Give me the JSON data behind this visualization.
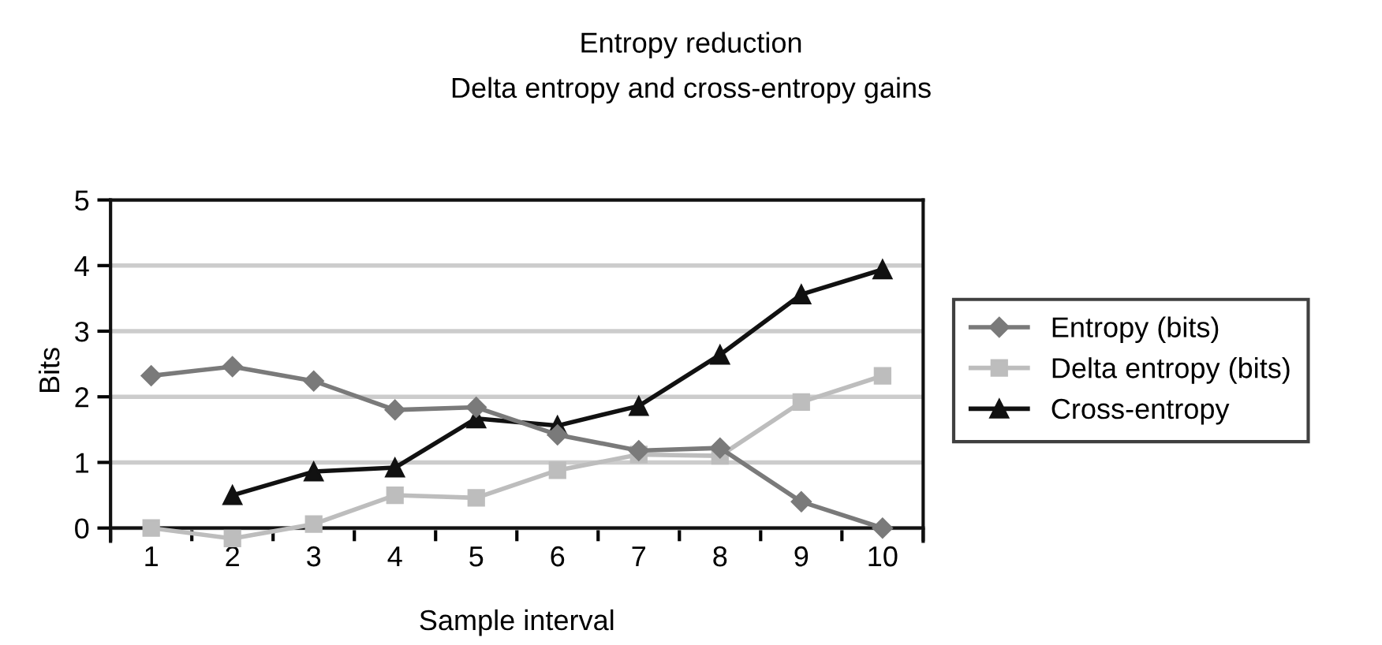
{
  "chart_data": {
    "type": "line",
    "title": "Entropy reduction",
    "subtitle": "Delta entropy and cross-entropy gains",
    "xlabel": "Sample interval",
    "ylabel": "Bits",
    "categories": [
      "1",
      "2",
      "3",
      "4",
      "5",
      "6",
      "7",
      "8",
      "9",
      "10"
    ],
    "series": [
      {
        "name": "Entropy (bits)",
        "color": "#7a7a7a",
        "marker": "diamond",
        "values": [
          2.32,
          2.46,
          2.24,
          1.8,
          1.84,
          1.42,
          1.18,
          1.22,
          0.4,
          0
        ]
      },
      {
        "name": "Delta entropy (bits)",
        "color": "#bdbdbd",
        "marker": "square",
        "values": [
          0,
          -0.16,
          0.06,
          0.5,
          0.46,
          0.88,
          1.12,
          1.1,
          1.92,
          2.32
        ]
      },
      {
        "name": "Cross-entropy",
        "color": "#111111",
        "marker": "triangle",
        "values": [
          null,
          0.5,
          0.86,
          0.92,
          1.67,
          1.56,
          1.86,
          2.64,
          3.56,
          3.94
        ]
      }
    ],
    "ylim": [
      -0.2,
      5
    ],
    "yticks": [
      0,
      1,
      2,
      3,
      4,
      5
    ],
    "grid": "y",
    "legend": "right",
    "line_style": "solid"
  }
}
